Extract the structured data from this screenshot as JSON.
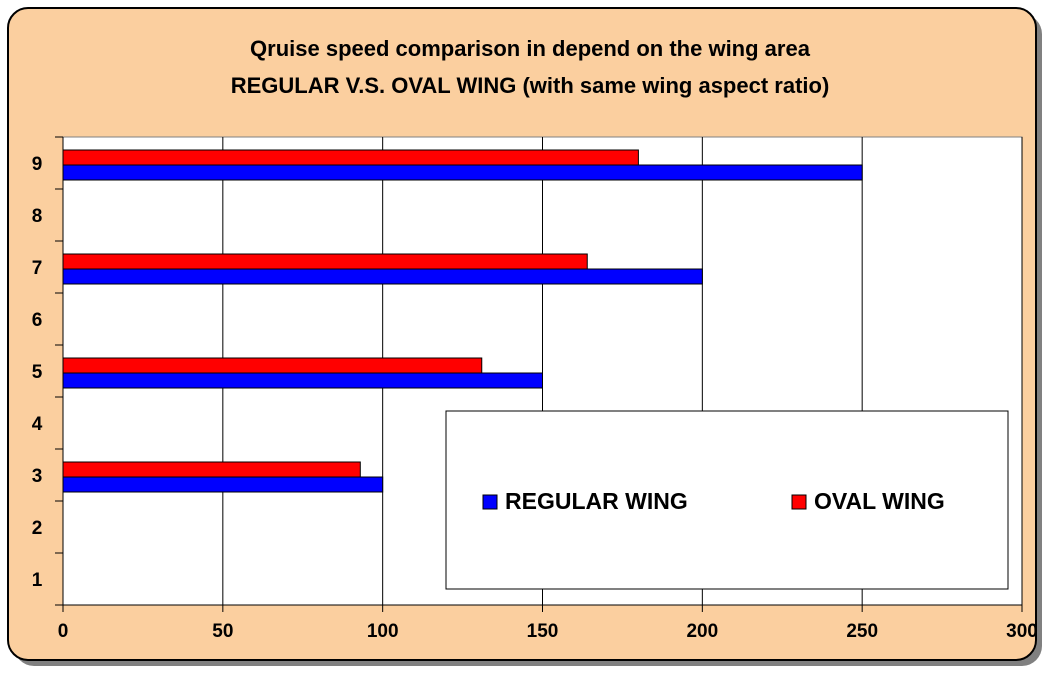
{
  "chart_data": {
    "type": "hbar",
    "title": [
      "Qruise speed comparison in depend on the wing area",
      "REGULAR V.S. OVAL WING (with same wing aspect ratio)"
    ],
    "categories": [
      "1",
      "2",
      "3",
      "4",
      "5",
      "6",
      "7",
      "8",
      "9"
    ],
    "series": [
      {
        "name": "REGULAR WING",
        "color": "#0000ff",
        "values": [
          null,
          null,
          100,
          null,
          150,
          null,
          200,
          null,
          250
        ]
      },
      {
        "name": "OVAL WING",
        "color": "#ff0000",
        "values": [
          null,
          null,
          93,
          null,
          131,
          null,
          164,
          null,
          180
        ]
      }
    ],
    "xlim": [
      0,
      300
    ],
    "xticks": [
      0,
      50,
      100,
      150,
      200,
      250,
      300
    ],
    "grid": true,
    "legend": "bottom-right"
  }
}
